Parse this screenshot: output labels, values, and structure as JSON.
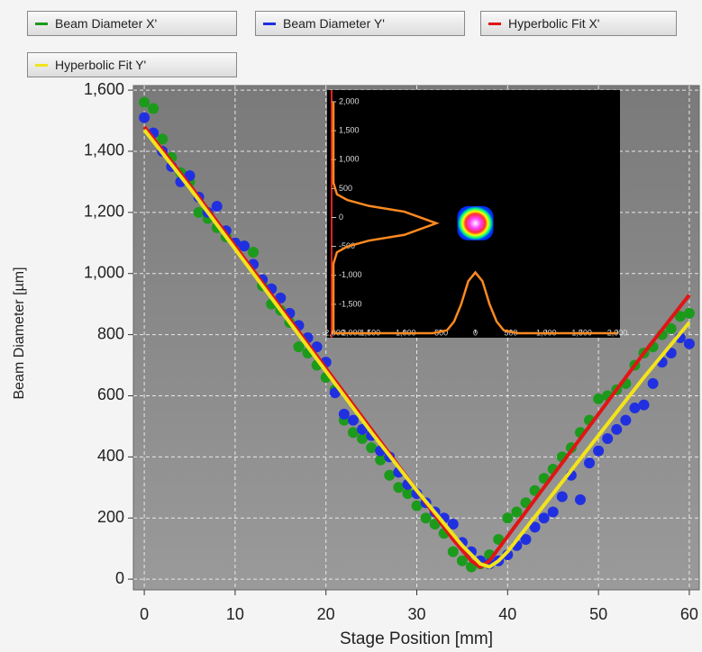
{
  "chart_data": {
    "type": "scatter",
    "x_label": "Stage Position [mm]",
    "y_label": "Beam Diameter [µm]",
    "xlim": [
      -1.2,
      61.1
    ],
    "ylim": [
      -35,
      1615
    ],
    "xticks": [
      0,
      10,
      20,
      30,
      40,
      50,
      60
    ],
    "yticks": [
      0,
      200,
      400,
      600,
      800,
      {
        "value": 1000,
        "label": "1,000"
      },
      {
        "value": 1200,
        "label": "1,200"
      },
      {
        "value": 1400,
        "label": "1,400"
      },
      {
        "value": 1600,
        "label": "1,600"
      }
    ],
    "grid": true,
    "series": [
      {
        "name": "Beam Diameter X'",
        "color": "#1c9a1c",
        "mode": "markers",
        "x": [
          0,
          1,
          2,
          3,
          4,
          5,
          6,
          7,
          8,
          9,
          10,
          11,
          12,
          13,
          14,
          15,
          16,
          17,
          18,
          19,
          20,
          21,
          22,
          23,
          24,
          25,
          26,
          27,
          28,
          29,
          30,
          31,
          32,
          33,
          34,
          35,
          36,
          37,
          38,
          39,
          40,
          41,
          42,
          43,
          44,
          45,
          46,
          47,
          48,
          49,
          50,
          51,
          52,
          53,
          54,
          55,
          56,
          57,
          58,
          59,
          60
        ],
        "values": [
          1560,
          1540,
          1440,
          1380,
          1330,
          1300,
          1200,
          1180,
          1150,
          1120,
          1100,
          1090,
          1070,
          960,
          900,
          880,
          840,
          760,
          740,
          700,
          660,
          620,
          520,
          480,
          460,
          430,
          390,
          340,
          300,
          280,
          240,
          200,
          180,
          150,
          90,
          60,
          40,
          50,
          80,
          130,
          200,
          220,
          250,
          290,
          330,
          360,
          400,
          430,
          480,
          520,
          590,
          600,
          620,
          640,
          700,
          740,
          760,
          800,
          820,
          860,
          870
        ]
      },
      {
        "name": "Beam Diameter Y'",
        "color": "#2030e0",
        "mode": "markers",
        "x": [
          0,
          1,
          2,
          3,
          4,
          5,
          6,
          7,
          8,
          9,
          10,
          11,
          12,
          13,
          14,
          15,
          16,
          17,
          18,
          19,
          20,
          21,
          22,
          23,
          24,
          25,
          26,
          27,
          28,
          29,
          30,
          31,
          32,
          33,
          34,
          35,
          36,
          37,
          38,
          39,
          40,
          41,
          42,
          43,
          44,
          45,
          46,
          47,
          48,
          49,
          50,
          51,
          52,
          53,
          54,
          55,
          56,
          57,
          58,
          59,
          60
        ],
        "values": [
          1510,
          1460,
          1400,
          1350,
          1300,
          1320,
          1250,
          1200,
          1220,
          1140,
          1100,
          1090,
          1030,
          980,
          950,
          920,
          870,
          830,
          790,
          760,
          710,
          610,
          540,
          520,
          490,
          470,
          420,
          400,
          350,
          310,
          280,
          250,
          220,
          200,
          180,
          120,
          90,
          60,
          50,
          60,
          80,
          110,
          130,
          170,
          200,
          220,
          270,
          340,
          260,
          380,
          420,
          460,
          490,
          520,
          560,
          570,
          640,
          710,
          740,
          790,
          770
        ]
      },
      {
        "name": "Hyperbolic Fit X'",
        "color": "#e01515",
        "mode": "line",
        "x": [
          0,
          5,
          10,
          15,
          20,
          25,
          30,
          34,
          36,
          37,
          38,
          40,
          45,
          50,
          55,
          60
        ],
        "values": [
          1480,
          1290,
          1090,
          890,
          690,
          490,
          290,
          130,
          60,
          40,
          60,
          140,
          340,
          540,
          740,
          930
        ]
      },
      {
        "name": "Hyperbolic Fit Y'",
        "color": "#f2e31c",
        "mode": "line",
        "x": [
          0,
          5,
          10,
          15,
          20,
          25,
          30,
          35,
          37,
          38,
          39,
          40,
          45,
          50,
          55,
          60
        ],
        "values": [
          1470,
          1280,
          1080,
          880,
          680,
          480,
          290,
          110,
          50,
          40,
          60,
          90,
          280,
          470,
          660,
          840
        ]
      }
    ],
    "inset": {
      "type": "image",
      "xlim": [
        -2000,
        2000
      ],
      "ylim": [
        -2000,
        2000
      ],
      "xticks": [
        {
          "value": -2000,
          "label": "-2,000"
        },
        {
          "value": -1500,
          "label": "-1,500"
        },
        {
          "value": -1000,
          "label": "-1,000"
        },
        -500,
        0,
        500,
        {
          "value": 1000,
          "label": "1,000"
        },
        {
          "value": 1500,
          "label": "1,500"
        },
        {
          "value": 2000,
          "label": "2,000"
        }
      ],
      "yticks": [
        {
          "value": 2000,
          "label": "2,000"
        },
        {
          "value": 1500,
          "label": "1,500"
        },
        {
          "value": 1000,
          "label": "1,000"
        },
        500,
        0,
        -500,
        {
          "value": -1000,
          "label": "-1,000"
        },
        {
          "value": -1500,
          "label": "-1,500"
        },
        {
          "value": -2000,
          "label": "-2,000"
        }
      ],
      "spot": {
        "x": 0,
        "y": -100
      },
      "x_profile": {
        "x": [
          -2000,
          -600,
          -400,
          -300,
          -200,
          -100,
          0,
          100,
          200,
          300,
          400,
          600,
          2000
        ],
        "values": [
          -2000,
          -2000,
          -1950,
          -1800,
          -1500,
          -1100,
          -950,
          -1100,
          -1500,
          -1800,
          -1950,
          -2000,
          -2000
        ]
      },
      "y_profile": {
        "y": [
          -2000,
          -800,
          -600,
          -500,
          -400,
          -300,
          -100,
          100,
          200,
          300,
          400,
          600,
          2000
        ],
        "values": [
          -2000,
          -2000,
          -1950,
          -1800,
          -1500,
          -1000,
          -550,
          -1000,
          -1500,
          -1800,
          -1950,
          -2000,
          -2000
        ]
      }
    }
  }
}
